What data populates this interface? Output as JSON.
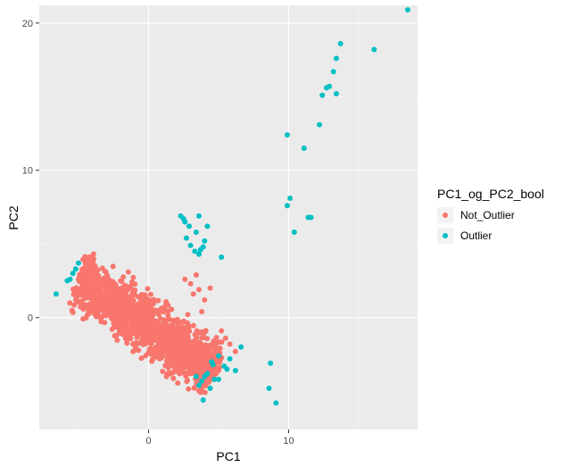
{
  "chart_data": {
    "type": "scatter",
    "xlabel": "PC1",
    "ylabel": "PC2",
    "xlim": [
      -7.8,
      19.2
    ],
    "ylim": [
      -7.6,
      21.2
    ],
    "x_ticks": [
      0,
      10
    ],
    "y_ticks": [
      0,
      10,
      20
    ],
    "grid": true,
    "legend": {
      "title": "PC1_og_PC2_bool",
      "placement": "right"
    },
    "series": [
      {
        "name": "Not_Outlier",
        "color": "#F8766D",
        "x": [
          -5.0,
          -4.8,
          -4.6,
          -4.4,
          -4.2,
          -4.0,
          -3.8,
          -3.6,
          -3.4,
          -3.2,
          -3.0,
          -2.8,
          -2.6,
          -2.4,
          -2.2,
          -2.0,
          -1.8,
          -1.6,
          -1.4,
          -1.2,
          -1.0,
          -0.8,
          -0.6,
          -0.4,
          -0.2,
          0.0,
          0.2,
          0.4,
          0.6,
          0.8,
          1.0,
          1.2,
          1.4,
          1.6,
          1.8,
          2.0,
          2.2,
          2.4,
          2.6,
          2.8,
          3.0,
          3.2,
          3.4,
          3.6,
          3.8,
          4.0,
          4.2,
          4.4,
          4.6,
          4.8,
          -4.5,
          -4.0,
          -3.5,
          -3.0,
          -2.5,
          -2.0,
          -1.5,
          -1.0,
          -0.5,
          0.0,
          0.5,
          1.0,
          1.5,
          2.0,
          2.5,
          3.0,
          3.5,
          4.0,
          4.5,
          5.0,
          -4.2,
          -3.6,
          -3.0,
          -2.4,
          -1.8,
          -1.2,
          -0.6,
          0.0,
          0.6,
          1.2,
          1.8,
          2.4,
          3.0,
          3.6,
          4.2,
          -3.8,
          -2.6,
          -1.4,
          -0.2,
          1.0,
          2.2,
          3.4,
          4.6,
          -3.3,
          -2.1,
          -0.9,
          0.3,
          1.5,
          2.7,
          3.9,
          -2.8,
          -1.6,
          -0.4,
          0.8,
          2.0,
          3.2,
          4.4,
          -2.2,
          -1.0,
          0.4,
          1.8,
          3.0,
          4.0,
          2.6,
          3.0,
          3.4,
          3.2,
          3.6,
          4.0,
          4.4,
          2.8,
          3.8,
          -2.5,
          -1.5,
          -0.5,
          1.0,
          1.2,
          5.5,
          5.8,
          5.2,
          6.2,
          4.8,
          5.0,
          -4.0,
          -3.0,
          -1.0,
          0.0,
          1.4,
          2.0,
          3.0,
          3.5,
          4.2,
          4.8,
          -3.5,
          -2.5,
          0.5,
          1.5,
          2.5,
          3.5,
          4.5
        ],
        "y": [
          2.6,
          2.4,
          2.3,
          2.0,
          1.9,
          1.7,
          1.6,
          1.4,
          1.3,
          1.1,
          1.0,
          0.9,
          0.7,
          0.6,
          0.4,
          0.3,
          0.2,
          0.0,
          -0.1,
          -0.3,
          -0.4,
          -0.5,
          -0.7,
          -0.8,
          -0.9,
          -1.1,
          -1.2,
          -1.3,
          -1.4,
          -1.6,
          -1.7,
          -1.8,
          -1.9,
          -2.0,
          -2.1,
          -2.3,
          -2.4,
          -2.5,
          -2.6,
          -2.7,
          -2.8,
          -2.9,
          -3.0,
          -3.1,
          -3.2,
          -3.3,
          -3.4,
          -3.5,
          -3.6,
          -3.7,
          2.9,
          2.7,
          2.3,
          1.8,
          1.4,
          1.0,
          0.6,
          0.3,
          -0.1,
          -0.4,
          -0.8,
          -1.2,
          -1.5,
          -1.8,
          -2.2,
          -2.5,
          -2.8,
          -3.1,
          -3.3,
          -3.6,
          2.1,
          1.7,
          1.2,
          0.8,
          0.5,
          0.1,
          -0.2,
          -0.6,
          -1.0,
          -1.3,
          -1.7,
          -2.0,
          -2.3,
          -2.6,
          -3.0,
          2.4,
          1.6,
          0.9,
          0.0,
          -0.7,
          -1.4,
          -2.1,
          -2.8,
          1.5,
          0.7,
          -0.1,
          -0.9,
          -1.6,
          -2.3,
          -3.1,
          1.0,
          0.2,
          -0.6,
          -1.4,
          -2.1,
          -2.8,
          -3.5,
          0.3,
          -0.5,
          -1.5,
          -2.4,
          -3.2,
          -3.8,
          2.6,
          2.3,
          2.9,
          1.6,
          1.9,
          1.2,
          2.0,
          0.2,
          0.4,
          -0.2,
          -0.9,
          -1.6,
          -2.6,
          0.8,
          -1.4,
          -1.8,
          -0.9,
          -2.3,
          -3.0,
          -2.4,
          2.2,
          1.5,
          -0.3,
          -1.2,
          -2.0,
          -2.9,
          -3.8,
          -3.6,
          -3.4,
          -2.7,
          2.0,
          1.3,
          -1.1,
          -2.1,
          -3.4,
          -3.9,
          -2.0
        ]
      },
      {
        "name": "Outlier",
        "color": "#00BFC4",
        "x": [
          18.5,
          16.1,
          13.7,
          13.4,
          13.2,
          12.9,
          12.7,
          12.4,
          13.4,
          12.2,
          9.9,
          11.1,
          11.6,
          10.1,
          9.9,
          10.4,
          11.4,
          2.3,
          2.6,
          2.9,
          3.6,
          4.2,
          3.4,
          2.7,
          4.0,
          3.9,
          3.0,
          3.3,
          3.6,
          5.2,
          3.7,
          2.5,
          -6.6,
          -5.8,
          -5.4,
          -5.2,
          -5.0,
          -5.6,
          5.0,
          5.4,
          5.8,
          6.2,
          6.6,
          4.6,
          4.0,
          3.8,
          3.4,
          3.6,
          4.2,
          4.5,
          5.0,
          5.6,
          8.7,
          8.6,
          9.1,
          3.9,
          4.4,
          4.7
        ],
        "y": [
          20.9,
          18.2,
          18.6,
          17.6,
          16.7,
          15.7,
          15.6,
          15.1,
          15.2,
          13.1,
          12.4,
          11.5,
          6.8,
          8.1,
          7.6,
          5.8,
          6.8,
          6.9,
          6.5,
          6.2,
          6.9,
          6.2,
          5.8,
          5.4,
          5.2,
          4.8,
          4.9,
          4.5,
          4.3,
          4.1,
          4.6,
          6.7,
          1.6,
          2.5,
          3.0,
          3.3,
          3.7,
          2.6,
          -2.6,
          -3.3,
          -2.8,
          -3.6,
          -2.0,
          -3.2,
          -4.0,
          -4.3,
          -4.0,
          -4.6,
          -3.8,
          -3.0,
          -4.2,
          -3.5,
          -3.1,
          -4.8,
          -5.8,
          -5.6,
          -4.8,
          -4.2
        ]
      }
    ]
  }
}
